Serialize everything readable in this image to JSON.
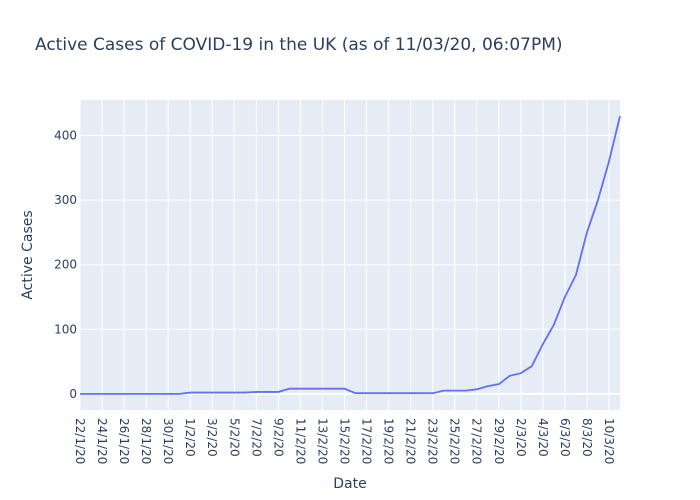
{
  "chart_data": {
    "type": "line",
    "title": "Active Cases of COVID-19 in the UK (as of 11/03/20, 06:07PM)",
    "xlabel": "Date",
    "ylabel": "Active Cases",
    "ylim": [
      -25,
      455
    ],
    "yticks": [
      0,
      100,
      200,
      300,
      400
    ],
    "grid": true,
    "colors": {
      "plot_bg": "#e5ecf6",
      "grid": "#ffffff",
      "line": "#636efa",
      "text": "#2a3f5f"
    },
    "xtick_labels": [
      "22/1/20",
      "24/1/20",
      "26/1/20",
      "28/1/20",
      "30/1/20",
      "1/2/20",
      "3/2/20",
      "5/2/20",
      "7/2/20",
      "9/2/20",
      "11/2/20",
      "13/2/20",
      "15/2/20",
      "17/2/20",
      "19/2/20",
      "21/2/20",
      "23/2/20",
      "25/2/20",
      "27/2/20",
      "29/2/20",
      "2/3/20",
      "4/3/20",
      "6/3/20",
      "8/3/20",
      "10/3/20"
    ],
    "x": [
      "22/1/20",
      "23/1/20",
      "24/1/20",
      "25/1/20",
      "26/1/20",
      "27/1/20",
      "28/1/20",
      "29/1/20",
      "30/1/20",
      "31/1/20",
      "1/2/20",
      "2/2/20",
      "3/2/20",
      "4/2/20",
      "5/2/20",
      "6/2/20",
      "7/2/20",
      "8/2/20",
      "9/2/20",
      "10/2/20",
      "11/2/20",
      "12/2/20",
      "13/2/20",
      "14/2/20",
      "15/2/20",
      "16/2/20",
      "17/2/20",
      "18/2/20",
      "19/2/20",
      "20/2/20",
      "21/2/20",
      "22/2/20",
      "23/2/20",
      "24/2/20",
      "25/2/20",
      "26/2/20",
      "27/2/20",
      "28/2/20",
      "29/2/20",
      "1/3/20",
      "2/3/20",
      "3/3/20",
      "4/3/20",
      "5/3/20",
      "6/3/20",
      "7/3/20",
      "8/3/20",
      "9/3/20",
      "10/3/20",
      "11/3/20"
    ],
    "series": [
      {
        "values": [
          0,
          0,
          0,
          0,
          0,
          0,
          0,
          0,
          0,
          0,
          2,
          2,
          2,
          2,
          2,
          2,
          3,
          3,
          3,
          8,
          8,
          8,
          8,
          8,
          8,
          1,
          1,
          1,
          1,
          1,
          1,
          1,
          1,
          5,
          5,
          5,
          7,
          12,
          15,
          28,
          32,
          43,
          77,
          107,
          150,
          184,
          250,
          300,
          360,
          430
        ]
      }
    ]
  }
}
